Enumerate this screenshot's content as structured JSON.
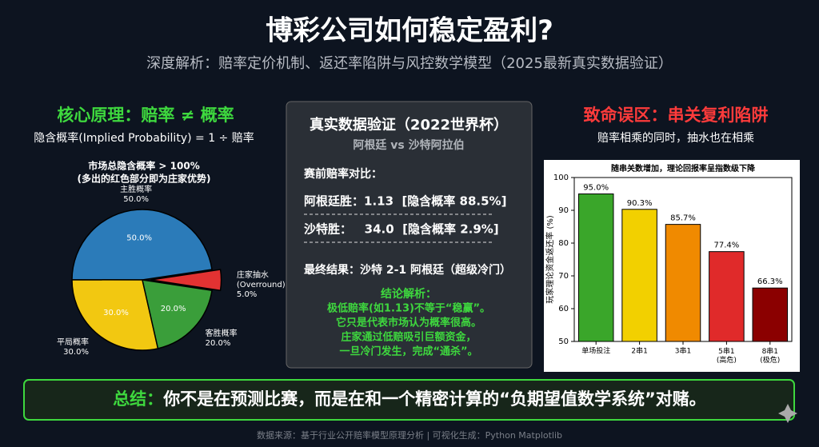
{
  "header": {
    "title": "博彩公司如何稳定盈利?",
    "subtitle": "深度解析：赔率定价机制、返还率陷阱与风控数学模型（2025最新真实数据验证）"
  },
  "left": {
    "heading": "核心原理：赔率 ≠ 概率",
    "formula": "隐含概率(Implied Probability) = 1 ÷ 赔率"
  },
  "middle": {
    "title": "真实数据验证（2022世界杯）",
    "match": "阿根廷 vs 沙特阿拉伯",
    "odds_heading": "赛前赔率对比：",
    "odds": [
      "阿根廷胜：1.13  [隐含概率 88.5%]",
      "沙特胜：   34.0  [隐含概率 2.9%]"
    ],
    "result": "最终结果：沙特 2-1 阿根廷（超级冷门）",
    "conclusion_heading": "结论解析：",
    "conclusion": [
      "极低赔率(如1.13)不等于“稳赢”。",
      "它只是代表市场认为概率很高。",
      "庄家通过低赔吸引巨额资金，",
      "一旦冷门发生，完成“通杀”。"
    ]
  },
  "right": {
    "heading": "致命误区：串关复利陷阱",
    "note": "赔率相乘的同时，抽水也在相乘"
  },
  "summary": {
    "label": "总结：",
    "text": "你不是在预测比赛，而是在和一个精密计算的“负期望值数学系统”对赌。"
  },
  "source": "数据来源：基于行业公开赔率模型原理分析 | 可视化生成：Python Matplotlib",
  "chart_data": [
    {
      "type": "pie",
      "title": "市场总隐含概率 > 100%",
      "subtitle": "(多出的红色部分即为庄家优势)",
      "categories": [
        "主胜概率",
        "平局概率",
        "客胜概率",
        "庄家抽水\n(Overround)"
      ],
      "values": [
        50,
        30,
        20,
        5
      ],
      "value_labels": [
        "50.0%",
        "30.0%",
        "20.0%",
        "5.0%"
      ],
      "colors": [
        "#2b7bb9",
        "#f2c811",
        "#3a9e3a",
        "#e23232"
      ],
      "explode": [
        false,
        false,
        false,
        true
      ]
    },
    {
      "type": "bar",
      "title": "随串关数增加，理论回报率呈指数级下降",
      "ylabel": "玩家理论资金返还率 (%)",
      "categories": [
        "单场投注",
        "2串1",
        "3串1",
        "5串1\n(高危)",
        "8串1\n(极危)"
      ],
      "values": [
        95.0,
        90.3,
        85.7,
        77.4,
        66.3
      ],
      "value_labels": [
        "95.0%",
        "90.3%",
        "85.7%",
        "77.4%",
        "66.3%"
      ],
      "colors": [
        "#3aa62a",
        "#f2d000",
        "#f08a00",
        "#e02a2a",
        "#8b0000"
      ],
      "ylim": [
        50,
        100
      ],
      "yticks": [
        50,
        60,
        70,
        80,
        90,
        100
      ]
    }
  ]
}
